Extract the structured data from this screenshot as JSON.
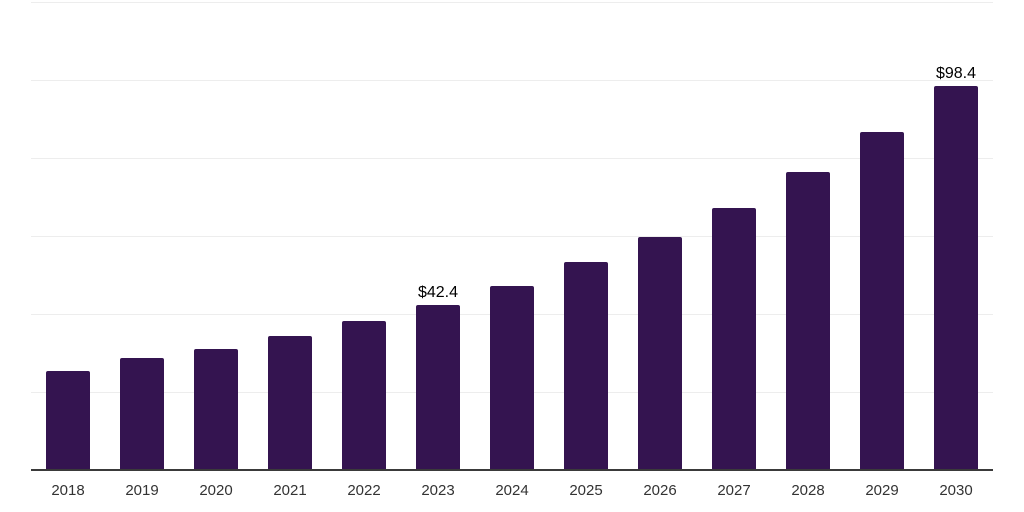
{
  "chart_data": {
    "type": "bar",
    "title": "",
    "xlabel": "",
    "ylabel": "",
    "categories": [
      "2018",
      "2019",
      "2020",
      "2021",
      "2022",
      "2023",
      "2024",
      "2025",
      "2026",
      "2027",
      "2028",
      "2029",
      "2030"
    ],
    "values": [
      25.4,
      28.6,
      31.0,
      34.4,
      38.3,
      42.4,
      47.3,
      53.3,
      59.7,
      67.3,
      76.4,
      86.6,
      98.4
    ],
    "value_labels": {
      "2023": "$42.4",
      "2030": "$98.4"
    },
    "ylim": [
      0,
      120
    ],
    "grid": true,
    "grid_interval": 20,
    "legend": false,
    "colors": {
      "bar": "#341450",
      "axis": "#3a3a3a",
      "gridline": "#ededed",
      "value_label": "#000000",
      "tick_label": "#333333",
      "background": "#ffffff"
    }
  }
}
